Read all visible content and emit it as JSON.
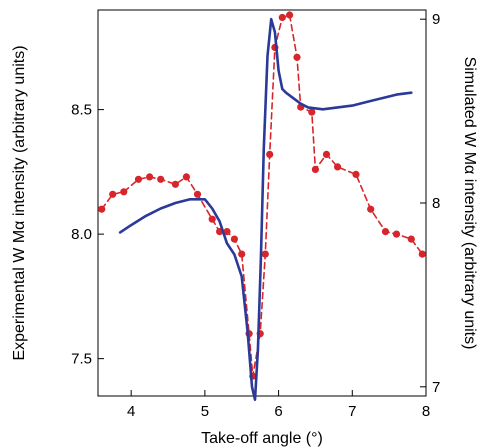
{
  "chart_data": {
    "type": "line",
    "xlabel": "Take-off angle (°)",
    "ylabel_left": "Experimental W Mα intensity (arbitrary units)",
    "ylabel_right": "Simulated W Mα intensity (arbitrary units)",
    "xlim": [
      3.55,
      8.0
    ],
    "ylim_left": [
      7.35,
      8.9
    ],
    "ylim_right": [
      6.95,
      9.05
    ],
    "x_ticks": [
      4,
      5,
      6,
      7,
      8
    ],
    "y_ticks_left": [
      7.5,
      8.0,
      8.5
    ],
    "y_ticks_right": [
      7,
      8,
      9
    ],
    "grid": false,
    "legend": "none",
    "series": [
      {
        "axis": "left",
        "style": "dashed-markers",
        "color": "#d7262b",
        "x": [
          3.6,
          3.75,
          3.9,
          4.1,
          4.25,
          4.4,
          4.6,
          4.75,
          4.9,
          5.1,
          5.2,
          5.3,
          5.4,
          5.5,
          5.6,
          5.65,
          5.75,
          5.82,
          5.88,
          5.95,
          6.05,
          6.15,
          6.25,
          6.3,
          6.45,
          6.5,
          6.65,
          6.8,
          7.05,
          7.25,
          7.45,
          7.6,
          7.8,
          7.95
        ],
        "y": [
          8.1,
          8.16,
          8.17,
          8.22,
          8.23,
          8.22,
          8.2,
          8.23,
          8.16,
          8.06,
          8.01,
          8.01,
          7.98,
          7.92,
          7.6,
          7.43,
          7.6,
          7.92,
          8.32,
          8.75,
          8.87,
          8.88,
          8.71,
          8.51,
          8.49,
          8.26,
          8.32,
          8.27,
          8.24,
          8.1,
          8.01,
          8.0,
          7.98,
          7.92
        ]
      },
      {
        "axis": "right",
        "style": "solid",
        "color": "#2b3a98",
        "x": [
          3.85,
          4.0,
          4.2,
          4.4,
          4.6,
          4.8,
          5.0,
          5.1,
          5.2,
          5.3,
          5.4,
          5.5,
          5.58,
          5.64,
          5.68,
          5.72,
          5.76,
          5.8,
          5.85,
          5.9,
          5.95,
          6.0,
          6.05,
          6.1,
          6.2,
          6.3,
          6.4,
          6.6,
          6.8,
          7.0,
          7.2,
          7.4,
          7.6,
          7.8
        ],
        "y": [
          7.84,
          7.88,
          7.93,
          7.97,
          8.0,
          8.02,
          8.02,
          7.97,
          7.9,
          7.78,
          7.72,
          7.6,
          7.3,
          7.0,
          6.93,
          7.2,
          7.7,
          8.3,
          8.8,
          9.0,
          8.93,
          8.72,
          8.62,
          8.6,
          8.57,
          8.54,
          8.52,
          8.51,
          8.52,
          8.53,
          8.55,
          8.57,
          8.59,
          8.6
        ]
      }
    ]
  }
}
